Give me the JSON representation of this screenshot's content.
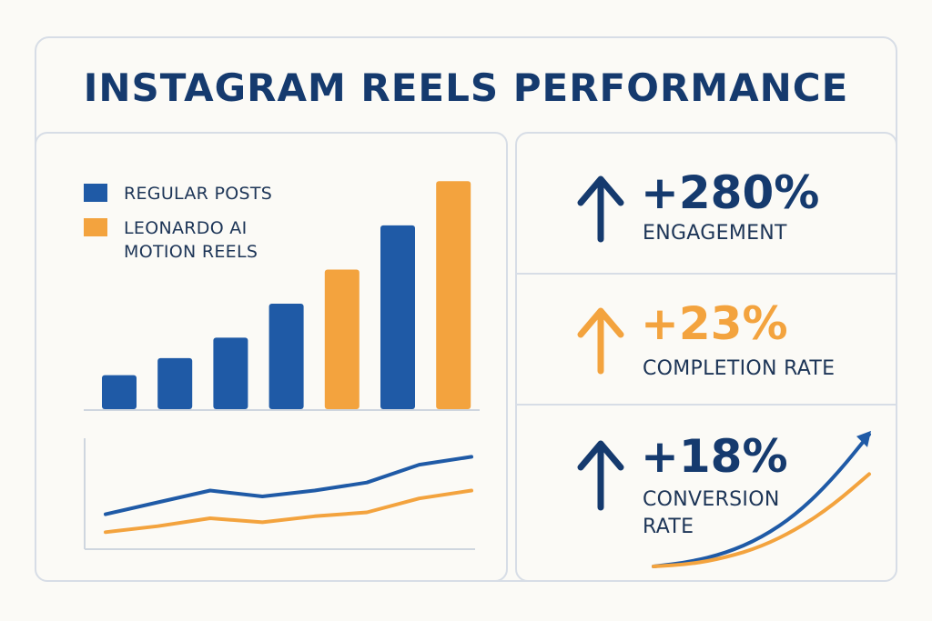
{
  "title": "INSTAGRAM REELS PERFORMANCE",
  "colors": {
    "blue": "#1f5aa6",
    "orange": "#f3a33e",
    "navy": "#153a6e"
  },
  "legend": [
    {
      "label": "REGULAR POSTS",
      "color": "#1f5aa6"
    },
    {
      "label": "LEONARDO AI\nMOTION REELS",
      "color": "#f3a33e"
    }
  ],
  "stats": [
    {
      "value": "+280%",
      "label": "ENGAGEMENT",
      "color": "#153a6e",
      "arrow_icon": "arrow-up-icon"
    },
    {
      "value": "+23%",
      "label": "COMPLETION RATE",
      "color": "#f3a33e",
      "arrow_icon": "arrow-up-icon"
    },
    {
      "value": "+18%",
      "label": "CONVERSION\nRATE",
      "color": "#153a6e",
      "arrow_icon": "arrow-up-icon"
    }
  ],
  "chart_data": [
    {
      "type": "bar",
      "categories": [
        "",
        "",
        "",
        "",
        "",
        "",
        ""
      ],
      "values": [
        10,
        15,
        21,
        31,
        41,
        54,
        67
      ],
      "series_of_bar": [
        "Regular Posts",
        "Regular Posts",
        "Regular Posts",
        "Regular Posts",
        "Leonardo AI Motion Reels",
        "Regular Posts",
        "Leonardo AI Motion Reels"
      ],
      "ylim": [
        0,
        70
      ],
      "grid": false
    },
    {
      "type": "line",
      "x": [
        0,
        1,
        2,
        3,
        4,
        5,
        6,
        7
      ],
      "series": [
        {
          "name": "REGULAR POSTS",
          "color": "#1f5aa6",
          "values": [
            13,
            19,
            25,
            22,
            25,
            29,
            38,
            42
          ]
        },
        {
          "name": "LEONARDO AI MOTION REELS",
          "color": "#f3a33e",
          "values": [
            4,
            7,
            11,
            9,
            12,
            14,
            21,
            25
          ]
        }
      ],
      "ylim": [
        0,
        55
      ],
      "grid": false
    },
    {
      "type": "line",
      "x": [
        0,
        1,
        2,
        3,
        4,
        5,
        6
      ],
      "series": [
        {
          "name": "",
          "color": "#1f5aa6",
          "values": [
            0,
            2,
            6,
            13,
            24,
            40,
            60
          ]
        },
        {
          "name": "",
          "color": "#f3a33e",
          "values": [
            0,
            1,
            4,
            9,
            17,
            28,
            42
          ]
        }
      ],
      "ylim": [
        0,
        62
      ],
      "grid": false
    }
  ]
}
